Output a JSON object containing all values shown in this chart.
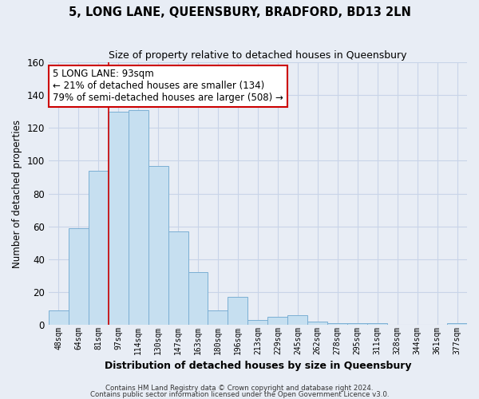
{
  "title": "5, LONG LANE, QUEENSBURY, BRADFORD, BD13 2LN",
  "subtitle": "Size of property relative to detached houses in Queensbury",
  "xlabel": "Distribution of detached houses by size in Queensbury",
  "ylabel": "Number of detached properties",
  "bar_labels": [
    "48sqm",
    "64sqm",
    "81sqm",
    "97sqm",
    "114sqm",
    "130sqm",
    "147sqm",
    "163sqm",
    "180sqm",
    "196sqm",
    "213sqm",
    "229sqm",
    "245sqm",
    "262sqm",
    "278sqm",
    "295sqm",
    "311sqm",
    "328sqm",
    "344sqm",
    "361sqm",
    "377sqm"
  ],
  "bar_values": [
    9,
    59,
    94,
    130,
    131,
    97,
    57,
    32,
    9,
    17,
    3,
    5,
    6,
    2,
    1,
    1,
    1,
    0,
    0,
    0,
    1
  ],
  "bar_color": "#c6dff0",
  "bar_edge_color": "#7bafd4",
  "property_line_index": 3,
  "property_line_color": "#cc0000",
  "ylim": [
    0,
    160
  ],
  "yticks": [
    0,
    20,
    40,
    60,
    80,
    100,
    120,
    140,
    160
  ],
  "annotation_title": "5 LONG LANE: 93sqm",
  "annotation_line1": "← 21% of detached houses are smaller (134)",
  "annotation_line2": "79% of semi-detached houses are larger (508) →",
  "annotation_box_color": "#ffffff",
  "annotation_box_edge": "#cc0000",
  "grid_color": "#c8d4e8",
  "background_color": "#e8edf5",
  "footer1": "Contains HM Land Registry data © Crown copyright and database right 2024.",
  "footer2": "Contains public sector information licensed under the Open Government Licence v3.0."
}
